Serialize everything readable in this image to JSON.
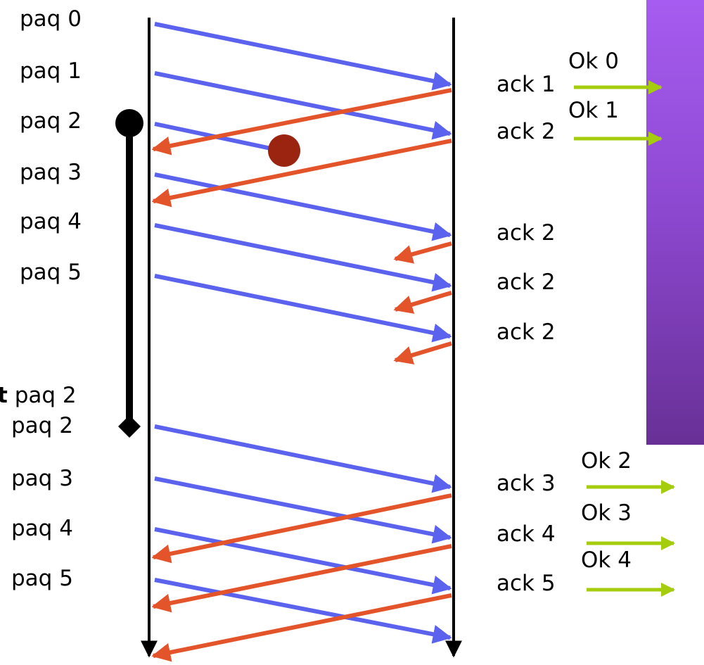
{
  "sender": {
    "packets": [
      "paq 0",
      "paq 1",
      "paq 2",
      "paq 3",
      "paq 4",
      "paq 5"
    ],
    "timeout_bold": "t",
    "timeout_label": "paq 2",
    "retransmitted": [
      "paq 2",
      "paq 3",
      "paq 4",
      "paq 5"
    ]
  },
  "receiver": {
    "acks": [
      "ack 1",
      "ack 2",
      "ack 2",
      "ack 2",
      "ack 2"
    ],
    "acks_after": [
      "ack 3",
      "ack 4",
      "ack 5"
    ],
    "delivered": [
      "Ok 0",
      "Ok 1"
    ],
    "delivered_after": [
      "Ok 2",
      "Ok 3",
      "Ok 4"
    ]
  },
  "colors": {
    "data_packet": "#5a62ee",
    "ack": "#e4542a",
    "delivery": "#a6cc0e",
    "loss": "#9a2410",
    "application": "#8e49d2"
  }
}
